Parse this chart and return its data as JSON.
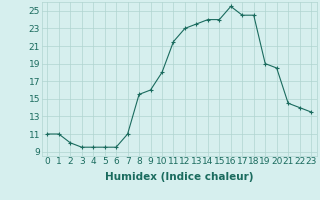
{
  "title": "",
  "xlabel": "Humidex (Indice chaleur)",
  "ylabel": "",
  "x": [
    0,
    1,
    2,
    3,
    4,
    5,
    6,
    7,
    8,
    9,
    10,
    11,
    12,
    13,
    14,
    15,
    16,
    17,
    18,
    19,
    20,
    21,
    22,
    23
  ],
  "y": [
    11,
    11,
    10,
    9.5,
    9.5,
    9.5,
    9.5,
    11,
    15.5,
    16,
    18,
    21.5,
    23,
    23.5,
    24,
    24,
    25.5,
    24.5,
    24.5,
    19,
    18.5,
    14.5,
    14,
    13.5
  ],
  "line_color": "#1a6b5e",
  "marker_color": "#1a6b5e",
  "bg_color": "#d6efee",
  "grid_color": "#b0d4d0",
  "tick_color": "#1a6b5e",
  "ylim_min": 8.5,
  "ylim_max": 26.0,
  "yticks": [
    9,
    11,
    13,
    15,
    17,
    19,
    21,
    23,
    25
  ],
  "xticks": [
    0,
    1,
    2,
    3,
    4,
    5,
    6,
    7,
    8,
    9,
    10,
    11,
    12,
    13,
    14,
    15,
    16,
    17,
    18,
    19,
    20,
    21,
    22,
    23
  ],
  "xtick_labels": [
    "0",
    "1",
    "2",
    "3",
    "4",
    "5",
    "6",
    "7",
    "8",
    "9",
    "10",
    "11",
    "12",
    "13",
    "14",
    "15",
    "16",
    "17",
    "18",
    "19",
    "20",
    "21",
    "22",
    "23"
  ],
  "font_size": 6.5,
  "label_font_size": 7.5
}
